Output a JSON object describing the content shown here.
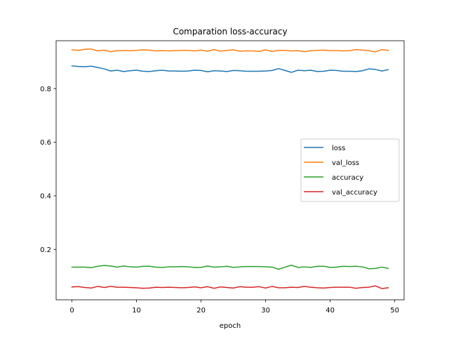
{
  "chart_data": {
    "type": "line",
    "title": "Comparation loss-accuracy",
    "xlabel": "epoch",
    "ylabel": "",
    "xlim": [
      -2.45,
      51.45
    ],
    "ylim": [
      0.012,
      0.979
    ],
    "xticks": [
      0,
      10,
      20,
      30,
      40,
      50
    ],
    "yticks": [
      0.2,
      0.4,
      0.6,
      0.8
    ],
    "ytick_labels": [
      "0.2",
      "0.4",
      "0.6",
      "0.8"
    ],
    "grid": false,
    "legend_position": "center-right",
    "x": [
      0,
      1,
      2,
      3,
      4,
      5,
      6,
      7,
      8,
      9,
      10,
      11,
      12,
      13,
      14,
      15,
      16,
      17,
      18,
      19,
      20,
      21,
      22,
      23,
      24,
      25,
      26,
      27,
      28,
      29,
      30,
      31,
      32,
      33,
      34,
      35,
      36,
      37,
      38,
      39,
      40,
      41,
      42,
      43,
      44,
      45,
      46,
      47,
      48,
      49
    ],
    "series": [
      {
        "name": "loss",
        "color": "#1f77b4",
        "values": [
          0.885,
          0.883,
          0.882,
          0.884,
          0.879,
          0.874,
          0.866,
          0.869,
          0.864,
          0.867,
          0.869,
          0.865,
          0.864,
          0.867,
          0.869,
          0.866,
          0.866,
          0.865,
          0.866,
          0.869,
          0.868,
          0.863,
          0.867,
          0.866,
          0.864,
          0.868,
          0.867,
          0.865,
          0.865,
          0.865,
          0.866,
          0.868,
          0.875,
          0.868,
          0.861,
          0.869,
          0.867,
          0.869,
          0.864,
          0.865,
          0.869,
          0.868,
          0.865,
          0.865,
          0.864,
          0.867,
          0.874,
          0.872,
          0.866,
          0.871
        ]
      },
      {
        "name": "val_loss",
        "color": "#ff7f0e",
        "values": [
          0.945,
          0.943,
          0.947,
          0.948,
          0.941,
          0.944,
          0.938,
          0.942,
          0.942,
          0.942,
          0.943,
          0.945,
          0.944,
          0.941,
          0.942,
          0.941,
          0.942,
          0.943,
          0.943,
          0.941,
          0.944,
          0.94,
          0.946,
          0.94,
          0.943,
          0.945,
          0.94,
          0.941,
          0.941,
          0.939,
          0.945,
          0.939,
          0.943,
          0.943,
          0.941,
          0.942,
          0.938,
          0.942,
          0.943,
          0.944,
          0.942,
          0.942,
          0.941,
          0.942,
          0.946,
          0.944,
          0.942,
          0.937,
          0.946,
          0.943
        ]
      },
      {
        "name": "accuracy",
        "color": "#2ca02c",
        "values": [
          0.134,
          0.134,
          0.134,
          0.132,
          0.137,
          0.14,
          0.138,
          0.134,
          0.138,
          0.135,
          0.134,
          0.137,
          0.137,
          0.134,
          0.133,
          0.135,
          0.135,
          0.136,
          0.135,
          0.133,
          0.133,
          0.138,
          0.134,
          0.135,
          0.137,
          0.133,
          0.135,
          0.136,
          0.136,
          0.136,
          0.135,
          0.134,
          0.126,
          0.134,
          0.141,
          0.133,
          0.135,
          0.133,
          0.137,
          0.137,
          0.133,
          0.134,
          0.137,
          0.136,
          0.137,
          0.135,
          0.128,
          0.129,
          0.134,
          0.129
        ]
      },
      {
        "name": "val_accuracy",
        "color": "#d62728",
        "values": [
          0.06,
          0.061,
          0.058,
          0.056,
          0.062,
          0.058,
          0.062,
          0.059,
          0.059,
          0.058,
          0.057,
          0.055,
          0.056,
          0.059,
          0.058,
          0.059,
          0.058,
          0.057,
          0.058,
          0.06,
          0.057,
          0.061,
          0.055,
          0.06,
          0.058,
          0.056,
          0.061,
          0.059,
          0.059,
          0.061,
          0.056,
          0.062,
          0.057,
          0.057,
          0.059,
          0.058,
          0.062,
          0.059,
          0.057,
          0.056,
          0.058,
          0.059,
          0.059,
          0.059,
          0.055,
          0.058,
          0.059,
          0.064,
          0.054,
          0.057
        ]
      }
    ]
  }
}
